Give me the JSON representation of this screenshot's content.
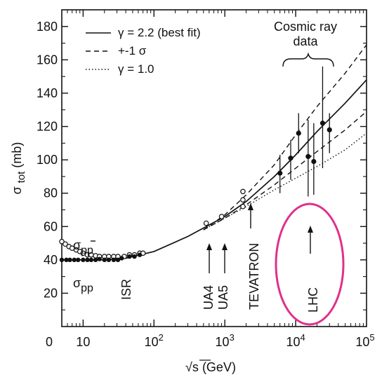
{
  "chart_data": {
    "type": "scatter",
    "x_scale": "log",
    "xlim": [
      5,
      100000
    ],
    "ylim": [
      0,
      190
    ],
    "xlabel_main": "√s",
    "xlabel_unit": "(GeV)",
    "ylabel_main": "σ",
    "ylabel_sub": "tot",
    "ylabel_unit": "(mb)",
    "x_ticks": [
      {
        "value": 5,
        "label": "0",
        "exp": ""
      },
      {
        "value": 10,
        "label": "10",
        "exp": ""
      },
      {
        "value": 100,
        "label": "10",
        "exp": "2"
      },
      {
        "value": 1000,
        "label": "10",
        "exp": "3"
      },
      {
        "value": 10000,
        "label": "10",
        "exp": "4"
      },
      {
        "value": 100000,
        "label": "10",
        "exp": "5"
      }
    ],
    "y_ticks": [
      20,
      40,
      60,
      80,
      100,
      120,
      140,
      160,
      180
    ],
    "legend": [
      {
        "label": "γ = 2.2 (best fit)",
        "style": "solid"
      },
      {
        "label": "+-1 σ",
        "style": "dashed"
      },
      {
        "label": "γ = 1.0",
        "style": "dotted"
      }
    ],
    "series": [
      {
        "name": "γ = 2.2 (best fit)",
        "style": "solid",
        "points": [
          [
            5,
            40
          ],
          [
            10,
            40
          ],
          [
            20,
            40
          ],
          [
            40,
            41
          ],
          [
            100,
            45
          ],
          [
            300,
            54
          ],
          [
            1000,
            66
          ],
          [
            2000,
            75
          ],
          [
            5000,
            90
          ],
          [
            10000,
            103
          ],
          [
            20000,
            117
          ],
          [
            50000,
            134
          ],
          [
            100000,
            148
          ]
        ]
      },
      {
        "name": "+-1 σ upper",
        "style": "dashed",
        "points": [
          [
            500,
            58
          ],
          [
            1000,
            67
          ],
          [
            2000,
            79
          ],
          [
            5000,
            97
          ],
          [
            10000,
            115
          ],
          [
            20000,
            132
          ],
          [
            50000,
            152
          ],
          [
            100000,
            169
          ]
        ]
      },
      {
        "name": "+-1 σ lower",
        "style": "dashed",
        "points": [
          [
            500,
            58
          ],
          [
            1000,
            65
          ],
          [
            2000,
            73
          ],
          [
            5000,
            85
          ],
          [
            10000,
            95
          ],
          [
            20000,
            105
          ],
          [
            50000,
            118
          ],
          [
            100000,
            129
          ]
        ]
      },
      {
        "name": "γ = 1.0",
        "style": "dotted",
        "points": [
          [
            500,
            58
          ],
          [
            1000,
            65
          ],
          [
            2000,
            72
          ],
          [
            5000,
            82
          ],
          [
            10000,
            89
          ],
          [
            20000,
            96
          ],
          [
            50000,
            106
          ],
          [
            100000,
            116
          ]
        ]
      },
      {
        "name": "σ_pp-bar",
        "marker": "open-circle",
        "points": [
          [
            5,
            51
          ],
          [
            5.6,
            49.5
          ],
          [
            6.3,
            48
          ],
          [
            7,
            47
          ],
          [
            8,
            46
          ],
          [
            9,
            45
          ],
          [
            10,
            44
          ],
          [
            11.5,
            43
          ],
          [
            13,
            43
          ],
          [
            15,
            42.5
          ],
          [
            17,
            42
          ],
          [
            20,
            42
          ],
          [
            23,
            42
          ],
          [
            27,
            42
          ],
          [
            31,
            42
          ],
          [
            38,
            42
          ],
          [
            45,
            43
          ],
          [
            53,
            43
          ],
          [
            63,
            44
          ],
          [
            70,
            44
          ]
        ]
      },
      {
        "name": "σ_pp",
        "marker": "filled-circle",
        "points": [
          [
            5,
            40
          ],
          [
            5.8,
            40
          ],
          [
            6.5,
            40
          ],
          [
            7.5,
            40
          ],
          [
            8.5,
            40
          ],
          [
            10,
            40
          ],
          [
            11.5,
            40
          ],
          [
            13,
            40
          ],
          [
            15,
            40
          ],
          [
            17,
            40.5
          ],
          [
            20,
            40
          ],
          [
            23,
            40
          ],
          [
            27,
            40
          ],
          [
            31,
            40
          ],
          [
            35,
            41
          ],
          [
            45,
            42
          ],
          [
            53,
            42
          ],
          [
            63,
            43
          ]
        ]
      },
      {
        "name": "UA4/UA5 data",
        "marker": "open-circle",
        "points": [
          [
            546,
            62
          ],
          [
            900,
            66
          ]
        ]
      },
      {
        "name": "TEVATRON data",
        "marker": "open-circle",
        "points": [
          [
            1800,
            72
          ],
          [
            1800,
            76
          ],
          [
            1800,
            81
          ]
        ]
      },
      {
        "name": "Cosmic ray data",
        "marker": "filled-circle-error",
        "points": [
          {
            "x": 6000,
            "y": 92,
            "ylo": 80,
            "yhi": 103
          },
          {
            "x": 8500,
            "y": 101,
            "ylo": 88,
            "yhi": 112
          },
          {
            "x": 11000,
            "y": 116,
            "ylo": 104,
            "yhi": 128
          },
          {
            "x": 15000,
            "y": 102,
            "ylo": 78,
            "yhi": 124
          },
          {
            "x": 18000,
            "y": 99,
            "ylo": 79,
            "yhi": 122
          },
          {
            "x": 24000,
            "y": 122,
            "ylo": 95,
            "yhi": 156
          },
          {
            "x": 30000,
            "y": 118,
            "ylo": 104,
            "yhi": 128
          }
        ]
      }
    ],
    "annotations": [
      {
        "id": "sigma-pbar",
        "main": "σ",
        "sub": "pp",
        "bar": true
      },
      {
        "id": "sigma-pp",
        "main": "σ",
        "sub": "pp",
        "bar": false
      },
      {
        "id": "isr",
        "text": "ISR"
      },
      {
        "id": "ua4",
        "text": "UA4"
      },
      {
        "id": "ua5",
        "text": "UA5"
      },
      {
        "id": "tevatron",
        "text": "TEVATRON"
      },
      {
        "id": "lhc",
        "text": "LHC"
      },
      {
        "id": "cosmic-1",
        "text": "Cosmic ray"
      },
      {
        "id": "cosmic-2",
        "text": "data"
      }
    ],
    "highlight": {
      "label": "LHC",
      "color": "#e0308a"
    },
    "grid": false
  }
}
